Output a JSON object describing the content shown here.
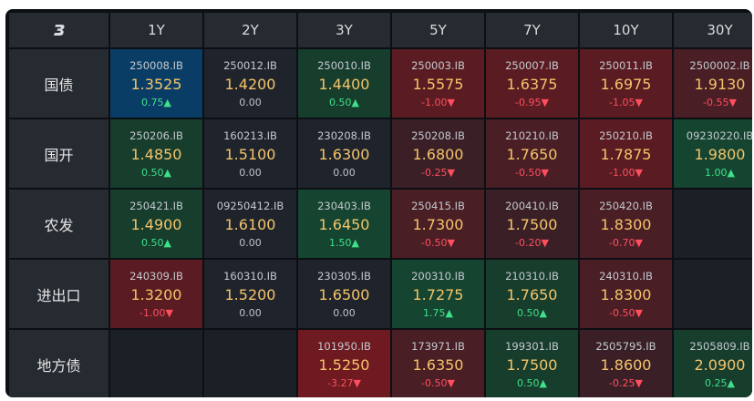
{
  "header": {
    "logo_icon": "brand-logo-icon",
    "columns": [
      "1Y",
      "2Y",
      "3Y",
      "5Y",
      "7Y",
      "10Y",
      "30Y"
    ]
  },
  "rows": [
    {
      "label": "国债",
      "cells": [
        {
          "code": "250008.IB",
          "price": "1.3525",
          "change": "0.75▲",
          "dir": "up",
          "color": "blue"
        },
        {
          "code": "250012.IB",
          "price": "1.4200",
          "change": "0.00",
          "dir": "flat",
          "color": "neutral"
        },
        {
          "code": "250010.IB",
          "price": "1.4400",
          "change": "0.50▲",
          "dir": "up",
          "color": "green1"
        },
        {
          "code": "250003.IB",
          "price": "1.5575",
          "change": "-1.00▼",
          "dir": "down",
          "color": "red3"
        },
        {
          "code": "250007.IB",
          "price": "1.6375",
          "change": "-0.95▼",
          "dir": "down",
          "color": "red3"
        },
        {
          "code": "250011.IB",
          "price": "1.6975",
          "change": "-1.05▼",
          "dir": "down",
          "color": "red3"
        },
        {
          "code": "2500002.IB",
          "price": "1.9130",
          "change": "-0.55▼",
          "dir": "down",
          "color": "red2"
        }
      ]
    },
    {
      "label": "国开",
      "cells": [
        {
          "code": "250206.IB",
          "price": "1.4850",
          "change": "0.50▲",
          "dir": "up",
          "color": "green1"
        },
        {
          "code": "160213.IB",
          "price": "1.5100",
          "change": "0.00",
          "dir": "flat",
          "color": "neutral"
        },
        {
          "code": "230208.IB",
          "price": "1.6300",
          "change": "0.00",
          "dir": "flat",
          "color": "neutral"
        },
        {
          "code": "250208.IB",
          "price": "1.6800",
          "change": "-0.25▼",
          "dir": "down",
          "color": "red1"
        },
        {
          "code": "210210.IB",
          "price": "1.7650",
          "change": "-0.50▼",
          "dir": "down",
          "color": "red2"
        },
        {
          "code": "250210.IB",
          "price": "1.7875",
          "change": "-1.00▼",
          "dir": "down",
          "color": "red3"
        },
        {
          "code": "09230220.IB",
          "price": "1.9800",
          "change": "1.00▲",
          "dir": "up",
          "color": "green2"
        }
      ]
    },
    {
      "label": "农发",
      "cells": [
        {
          "code": "250421.IB",
          "price": "1.4900",
          "change": "0.50▲",
          "dir": "up",
          "color": "green1"
        },
        {
          "code": "09250412.IB",
          "price": "1.6100",
          "change": "0.00",
          "dir": "flat",
          "color": "neutral"
        },
        {
          "code": "230403.IB",
          "price": "1.6450",
          "change": "1.50▲",
          "dir": "up",
          "color": "green2"
        },
        {
          "code": "250415.IB",
          "price": "1.7300",
          "change": "-0.50▼",
          "dir": "down",
          "color": "red2"
        },
        {
          "code": "200410.IB",
          "price": "1.7500",
          "change": "-0.20▼",
          "dir": "down",
          "color": "red1"
        },
        {
          "code": "250420.IB",
          "price": "1.8300",
          "change": "-0.70▼",
          "dir": "down",
          "color": "red2"
        },
        {
          "code": "",
          "price": "",
          "change": "",
          "dir": "flat",
          "color": "empty"
        }
      ]
    },
    {
      "label": "进出口",
      "cells": [
        {
          "code": "240309.IB",
          "price": "1.3200",
          "change": "-1.00▼",
          "dir": "down",
          "color": "red3"
        },
        {
          "code": "160310.IB",
          "price": "1.5200",
          "change": "0.00",
          "dir": "flat",
          "color": "neutral"
        },
        {
          "code": "230305.IB",
          "price": "1.6500",
          "change": "0.00",
          "dir": "flat",
          "color": "neutral"
        },
        {
          "code": "200310.IB",
          "price": "1.7275",
          "change": "1.75▲",
          "dir": "up",
          "color": "green2"
        },
        {
          "code": "210310.IB",
          "price": "1.7650",
          "change": "0.50▲",
          "dir": "up",
          "color": "green1"
        },
        {
          "code": "240310.IB",
          "price": "1.8300",
          "change": "-0.50▼",
          "dir": "down",
          "color": "red2"
        },
        {
          "code": "",
          "price": "",
          "change": "",
          "dir": "flat",
          "color": "empty"
        }
      ]
    },
    {
      "label": "地方债",
      "cells": [
        {
          "code": "",
          "price": "",
          "change": "",
          "dir": "flat",
          "color": "empty"
        },
        {
          "code": "",
          "price": "",
          "change": "",
          "dir": "flat",
          "color": "empty"
        },
        {
          "code": "101950.IB",
          "price": "1.5250",
          "change": "-3.27▼",
          "dir": "down",
          "color": "red4"
        },
        {
          "code": "173971.IB",
          "price": "1.6350",
          "change": "-0.50▼",
          "dir": "down",
          "color": "red2"
        },
        {
          "code": "199301.IB",
          "price": "1.7500",
          "change": "0.50▲",
          "dir": "up",
          "color": "green1"
        },
        {
          "code": "2505795.IB",
          "price": "1.8600",
          "change": "-0.25▼",
          "dir": "down",
          "color": "red1"
        },
        {
          "code": "2505809.IB",
          "price": "2.0900",
          "change": "0.25▲",
          "dir": "up",
          "color": "green1"
        }
      ]
    }
  ],
  "colors": {
    "price": "#f4c46a",
    "up": "#3ee08a",
    "down": "#ff4e5e",
    "flat": "#bfc3c9",
    "highlight_blue": "#0a3d66"
  }
}
